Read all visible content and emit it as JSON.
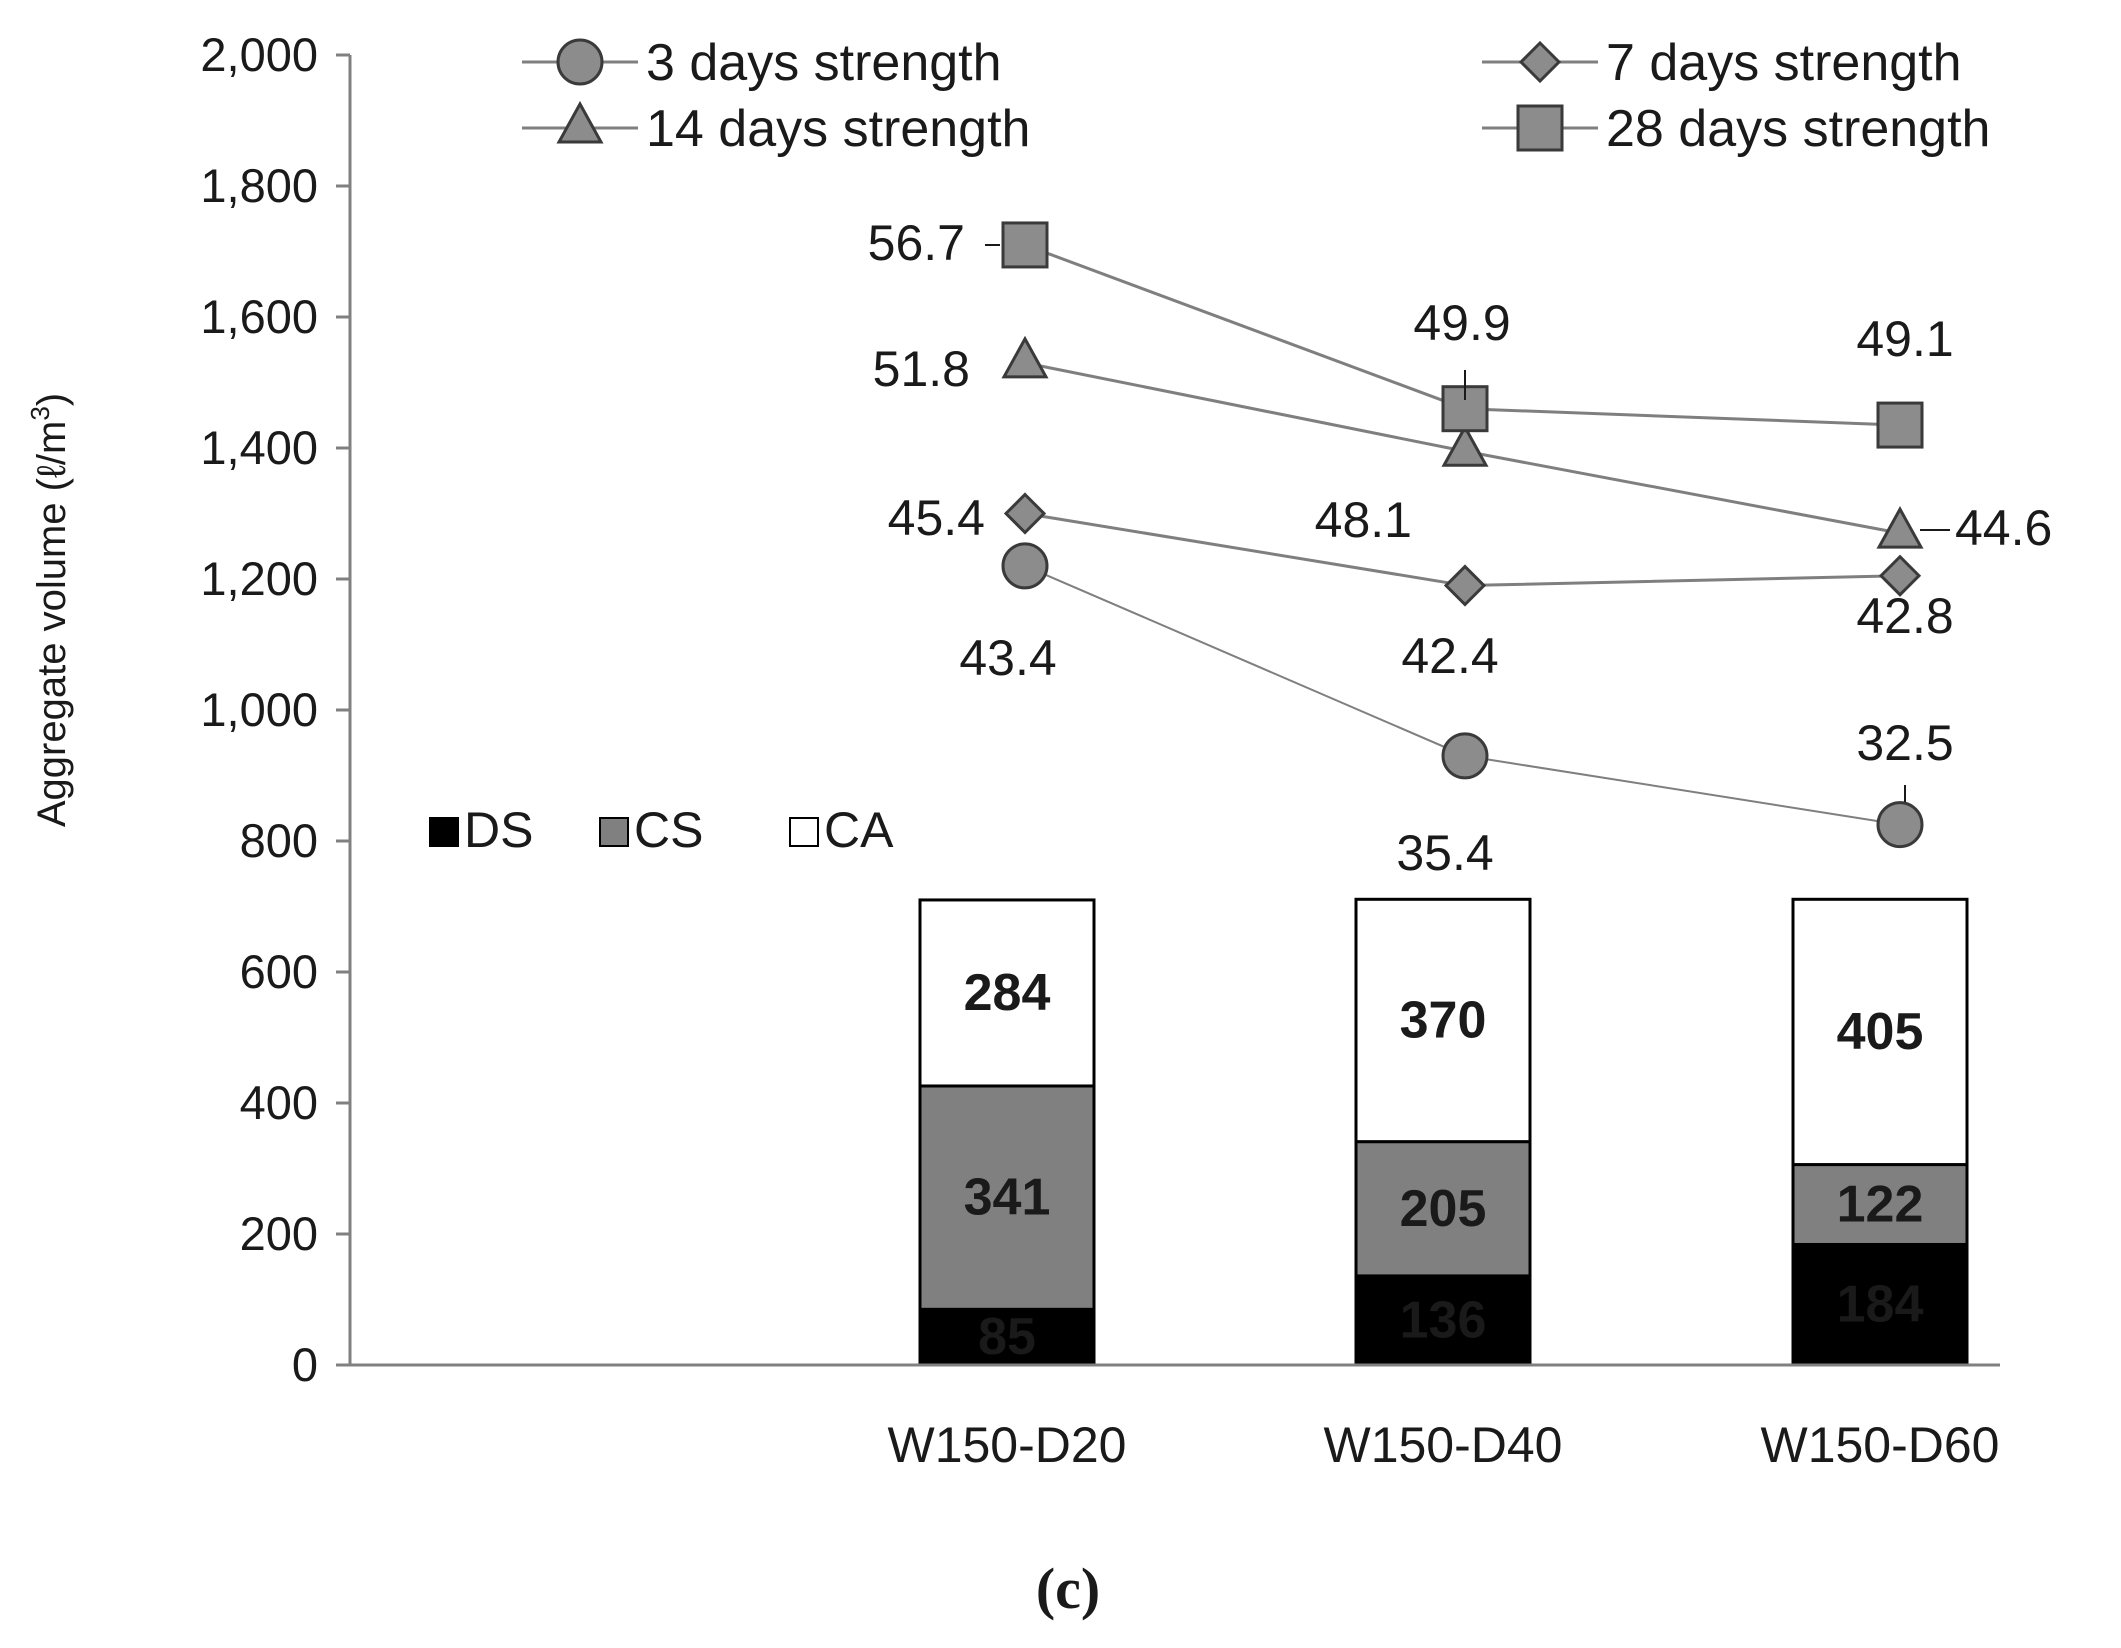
{
  "chart_data": {
    "type": "bar",
    "panel_label": "(c)",
    "ylabel": "Aggregate volume (ℓ/m",
    "ylabel_superscript": "3",
    "ylabel_suffix": ")",
    "ylim": [
      0,
      2000
    ],
    "yticks": [
      "0",
      "200",
      "400",
      "600",
      "800",
      "1,000",
      "1,200",
      "1,400",
      "1,600",
      "1,800",
      "2,000"
    ],
    "ytick_values": [
      0,
      200,
      400,
      600,
      800,
      1000,
      1200,
      1400,
      1600,
      1800,
      2000
    ],
    "categories": [
      "W150-D20",
      "W150-D40",
      "W150-D60"
    ],
    "bar_series": [
      {
        "name": "DS",
        "values": [
          85,
          136,
          184
        ],
        "color": "#000000",
        "label_color": "#ffffff"
      },
      {
        "name": "CS",
        "values": [
          341,
          205,
          122
        ],
        "color": "#808080",
        "label_color": "#ffffff"
      },
      {
        "name": "CA",
        "values": [
          284,
          370,
          405
        ],
        "color": "#ffffff",
        "label_color": "#000000"
      }
    ],
    "line_series": [
      {
        "name": "3 days strength",
        "marker": "circle",
        "labels": [
          "43.4",
          "35.4",
          "32.5"
        ],
        "plot_values": [
          1220,
          930,
          825
        ]
      },
      {
        "name": "7 days strength",
        "marker": "diamond",
        "labels": [
          "45.4",
          "42.4",
          "42.8"
        ],
        "plot_values": [
          1300,
          1190,
          1205
        ]
      },
      {
        "name": "14 days strength",
        "marker": "triangle",
        "labels": [
          "51.8",
          "48.1",
          "44.6"
        ],
        "plot_values": [
          1530,
          1395,
          1270
        ]
      },
      {
        "name": "28 days strength",
        "marker": "square",
        "labels": [
          "56.7",
          "49.9",
          "49.1"
        ],
        "plot_values": [
          1710,
          1460,
          1435
        ]
      }
    ],
    "colors": {
      "line": "#7f7f7f",
      "marker_fill": "#8c8c8c",
      "axis": "#808080"
    }
  }
}
